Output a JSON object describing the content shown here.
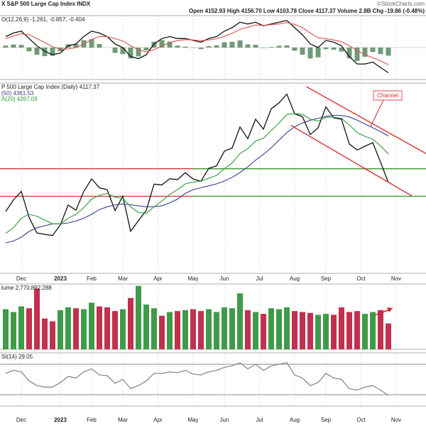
{
  "header": {
    "symbol_line": "X S&P 500 Large Cap Index INDX",
    "quote": "Open 4152.93  High 4156.70  Low 4103.78  Close 4117.37  Volume 2.8B  Chg -19.86 (-0.48%)",
    "credit": "©StockCharts.com"
  },
  "chart_data": [
    {
      "type": "line",
      "title": "O(12,26,9) -1.261, -0.857, -0.404",
      "ylim": [
        -1.6,
        1.6
      ],
      "zero_line": true,
      "series": [
        {
          "color": "#111111",
          "values": [
            0.55,
            0.73,
            0.82,
            0.45,
            0.09,
            -0.18,
            -0.36,
            -0.27,
            0.09,
            0.18,
            0.55,
            0.82,
            0.73,
            0.55,
            0.18,
            0,
            -0.45,
            -0.55,
            -0.36,
            0.18,
            0.45,
            0.55,
            0.45,
            0.45,
            0.36,
            0.27,
            0.45,
            0.55,
            0.82,
            1.0,
            1.27,
            1.18,
            1.27,
            1.09,
            1.18,
            1.27,
            1.36,
            1.0,
            0.64,
            0.18,
            0,
            0.36,
            0.27,
            0.09,
            -0.45,
            -0.82,
            -0.82,
            -0.73,
            -1.0,
            -1.261
          ]
        },
        {
          "color": "#d9534f",
          "values": [
            0.45,
            0.58,
            0.69,
            0.64,
            0.45,
            0.25,
            0.05,
            -0.09,
            -0.07,
            0,
            0.18,
            0.4,
            0.55,
            0.55,
            0.45,
            0.33,
            0.09,
            -0.11,
            -0.22,
            -0.11,
            0.07,
            0.25,
            0.35,
            0.4,
            0.38,
            0.35,
            0.38,
            0.44,
            0.56,
            0.71,
            0.91,
            1.02,
            1.13,
            1.11,
            1.15,
            1.18,
            1.25,
            1.16,
            1.0,
            0.73,
            0.49,
            0.44,
            0.38,
            0.29,
            0.09,
            -0.15,
            -0.36,
            -0.51,
            -0.67,
            -0.857
          ]
        }
      ],
      "histogram": {
        "color": "#6f9a78",
        "values": [
          0.1,
          0.15,
          0.13,
          -0.19,
          -0.36,
          -0.43,
          -0.41,
          -0.18,
          0.16,
          0.18,
          0.37,
          0.42,
          0.18,
          0,
          -0.27,
          -0.33,
          -0.54,
          -0.44,
          -0.14,
          0.29,
          0.38,
          0.3,
          0.1,
          0.05,
          -0.02,
          -0.08,
          0.07,
          0.11,
          0.26,
          0.29,
          0.36,
          0.16,
          0.14,
          -0.02,
          0.03,
          0.09,
          0.11,
          -0.16,
          -0.36,
          -0.55,
          -0.49,
          -0.08,
          -0.11,
          -0.2,
          -0.54,
          -0.67,
          -0.46,
          -0.22,
          -0.33,
          -0.404
        ]
      }
    },
    {
      "type": "line",
      "title": "P 500 Large Cap Index (Daily) 4117.37",
      "ylim": [
        3640,
        4640
      ],
      "xticks": [
        {
          "value": 2,
          "label": "Dec"
        },
        {
          "value": 7,
          "label": "2023"
        },
        {
          "value": 11,
          "label": "Feb"
        },
        {
          "value": 15,
          "label": "Mar"
        },
        {
          "value": 19.5,
          "label": "Apr"
        },
        {
          "value": 24,
          "label": "May"
        },
        {
          "value": 28,
          "label": "Jun"
        },
        {
          "value": 32.5,
          "label": "Jul"
        },
        {
          "value": 37,
          "label": "Aug"
        },
        {
          "value": 41,
          "label": "Sep"
        },
        {
          "value": 45.5,
          "label": "Oct"
        },
        {
          "value": 50,
          "label": "Nov"
        }
      ],
      "series": [
        {
          "color": "#111111",
          "values": [
            3965,
            4026,
            4071,
            3934,
            3852,
            3845,
            3839,
            3895,
            3999,
            3972,
            4071,
            4136,
            4090,
            4079,
            3970,
            4045,
            3861,
            3917,
            3971,
            4109,
            4105,
            4137,
            4133,
            4169,
            4136,
            4124,
            4192,
            4205,
            4282,
            4299,
            4409,
            4348,
            4450,
            4398,
            4505,
            4536,
            4582,
            4478,
            4464,
            4369,
            4405,
            4515,
            4457,
            4450,
            4320,
            4288,
            4308,
            4327,
            4224,
            4117
          ]
        },
        {
          "name": "(50) 4361.53",
          "color": "#3d3d8f",
          "values": [
            3800,
            3810,
            3830,
            3860,
            3880,
            3890,
            3900,
            3900,
            3905,
            3915,
            3930,
            3950,
            3975,
            3990,
            4000,
            4005,
            4000,
            3995,
            3990,
            3990,
            3995,
            4010,
            4030,
            4060,
            4080,
            4090,
            4100,
            4110,
            4125,
            4145,
            4170,
            4200,
            4235,
            4265,
            4300,
            4340,
            4380,
            4410,
            4430,
            4445,
            4455,
            4465,
            4470,
            4470,
            4462,
            4445,
            4425,
            4405,
            4385,
            4362
          ]
        },
        {
          "name": "A(20) 4267.09",
          "color": "#2e9a3a",
          "values": [
            3850,
            3880,
            3930,
            3950,
            3940,
            3920,
            3900,
            3900,
            3930,
            3950,
            3985,
            4030,
            4050,
            4060,
            4040,
            4035,
            3990,
            3960,
            3955,
            3990,
            4020,
            4055,
            4080,
            4110,
            4120,
            4125,
            4140,
            4155,
            4190,
            4220,
            4270,
            4295,
            4335,
            4350,
            4390,
            4430,
            4475,
            4480,
            4475,
            4450,
            4440,
            4460,
            4460,
            4455,
            4420,
            4380,
            4360,
            4345,
            4310,
            4267
          ]
        }
      ],
      "levels": [
        {
          "value": 4190,
          "color": "#d62728"
        },
        {
          "value": 4045,
          "color": "#d62728"
        },
        {
          "value": 4190,
          "color": "#2ca02c",
          "from": 24
        },
        {
          "value": 4045,
          "color": "#2ca02c",
          "from": 24
        }
      ],
      "channels": [
        {
          "x": [
            38.5,
            53.8
          ],
          "values": [
            4621,
            4270
          ],
          "color": "#d62728"
        },
        {
          "x": [
            36.5,
            52
          ],
          "values": [
            4418,
            4047
          ],
          "color": "#d62728"
        }
      ],
      "annotation": "Channel"
    },
    {
      "type": "bar",
      "title": "lume 2,770,892,288",
      "ylim": [
        0,
        7000000000
      ],
      "up_color": "#3f9b4a",
      "down_color": "#c2304f",
      "values": [
        4300000000,
        4000000000,
        4600000000,
        4400000000,
        6500000000,
        3300000000,
        3000000000,
        4200000000,
        4500000000,
        4400000000,
        4300000000,
        5000000000,
        4600000000,
        4500000000,
        4100000000,
        4300000000,
        5500000000,
        6800000000,
        4800000000,
        4400000000,
        3600000000,
        4000000000,
        4100000000,
        4200000000,
        4300000000,
        4100000000,
        4300000000,
        4000000000,
        4500000000,
        4400000000,
        6000000000,
        4200000000,
        4000000000,
        3800000000,
        4400000000,
        4300000000,
        4500000000,
        4100000000,
        4000000000,
        3900000000,
        3700000000,
        3800000000,
        3700000000,
        4500000000,
        4000000000,
        4100000000,
        3800000000,
        4000000000,
        4200000000,
        2770892288
      ]
    },
    {
      "type": "line",
      "title": "SI(14) 29.05",
      "ylim": [
        15,
        85
      ],
      "levels": [
        {
          "value": 70,
          "color": "#999999"
        },
        {
          "value": 30,
          "color": "#999999"
        }
      ],
      "series": [
        {
          "color": "#8a8a8a",
          "values": [
            58,
            62,
            60,
            48,
            42,
            40,
            40,
            46,
            54,
            52,
            60,
            64,
            56,
            55,
            45,
            50,
            38,
            42,
            48,
            58,
            58,
            60,
            59,
            62,
            57,
            56,
            60,
            62,
            66,
            68,
            72,
            64,
            70,
            62,
            68,
            70,
            72,
            56,
            52,
            42,
            46,
            58,
            52,
            50,
            38,
            36,
            40,
            42,
            36,
            29.05
          ]
        }
      ]
    }
  ]
}
